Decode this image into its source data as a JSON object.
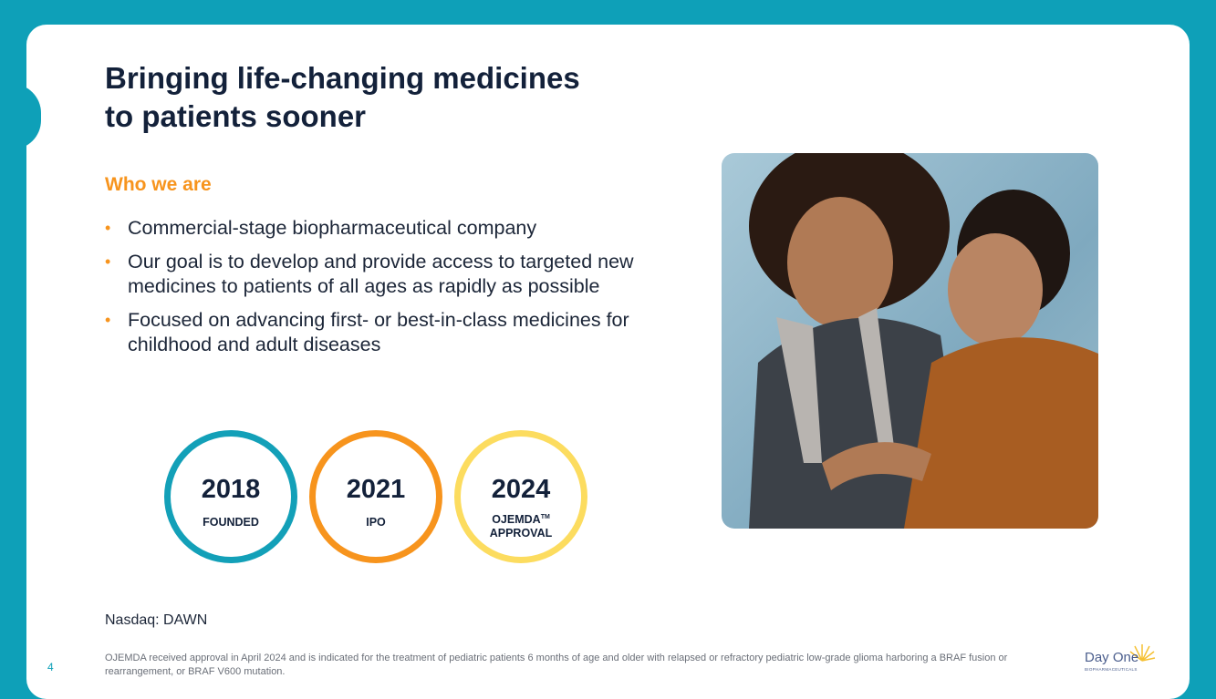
{
  "title_lines": [
    "Bringing life-changing medicines",
    "to patients sooner"
  ],
  "subtitle": "Who we are",
  "bullets": [
    "Commercial-stage biopharmaceutical company",
    "Our goal is to develop and provide access to targeted new medicines to patients of all ages as rapidly as possible",
    "Focused on advancing first- or best-in-class medicines for childhood and adult diseases"
  ],
  "bullet_glyph": "•",
  "milestones": [
    {
      "year": "2018",
      "label": "FOUNDED",
      "color": "#13a0b8"
    },
    {
      "year": "2021",
      "label": "IPO",
      "color": "#f7941d"
    },
    {
      "year": "2024",
      "label": "OJEMDA",
      "label_sup": "TM",
      "label2": "APPROVAL",
      "color": "#fcdc5f"
    }
  ],
  "nasdaq": "Nasdaq: DAWN",
  "page_number": "4",
  "footnote": "OJEMDA received approval in April 2024 and is indicated for the treatment of pediatric patients 6 months of age and older with relapsed or refractory pediatric low-grade glioma harboring a BRAF fusion or rearrangement, or BRAF V600 mutation.",
  "logo": {
    "name": "Day One",
    "tagline": "BIOPHARMACEUTICALS"
  },
  "colors": {
    "teal": "#0ea0b8",
    "orange": "#f7941d",
    "yellow": "#fcdc5f",
    "navy": "#13213a"
  }
}
